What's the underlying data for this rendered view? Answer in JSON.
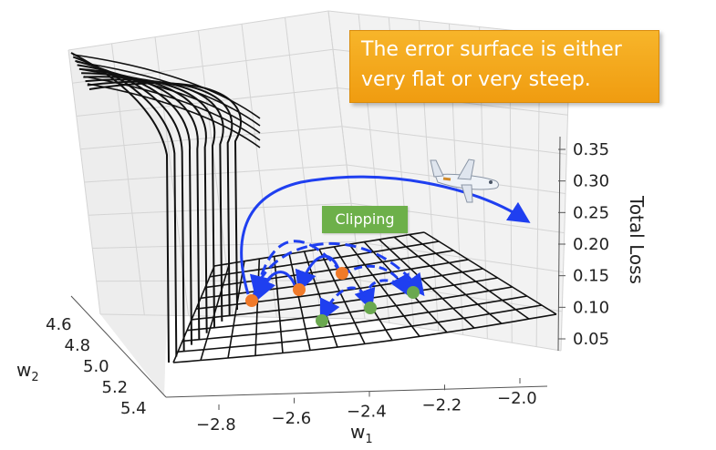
{
  "chart_data": {
    "type": "surface3d",
    "x_label": "w",
    "x_label_sub": "1",
    "y_label": "w",
    "y_label_sub": "2",
    "z_label": "Total Loss",
    "x_ticks": [
      "−2.8",
      "−2.6",
      "−2.4",
      "−2.2",
      "−2.0"
    ],
    "y_ticks": [
      "4.6",
      "4.8",
      "5.0",
      "5.2",
      "5.4"
    ],
    "z_ticks": [
      "0.35",
      "0.30",
      "0.25",
      "0.20",
      "0.15",
      "0.10",
      "0.05"
    ],
    "xlim": [
      -2.9,
      -1.95
    ],
    "ylim": [
      4.55,
      5.45
    ],
    "zlim": [
      0.03,
      0.37
    ]
  },
  "annotations": {
    "callout_line1": "The error surface is either",
    "callout_line2": "very flat or very steep.",
    "clipping_label": "Clipping"
  },
  "colors": {
    "arrow": "#1f3ff0",
    "orange_point": "#f07a2a",
    "green_point": "#6aa84f",
    "callout": "#f5a623",
    "clipping_label": "#6db04a"
  },
  "icons": [
    "airplane-icon"
  ]
}
